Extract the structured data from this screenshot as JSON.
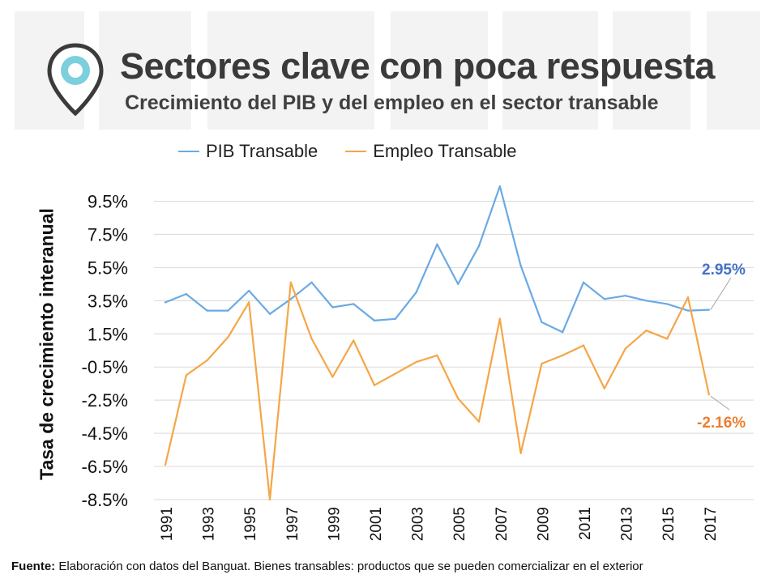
{
  "header": {
    "title": "Sectores clave con poca respuesta",
    "subtitle": "Crecimiento del PIB y del empleo en el sector transable"
  },
  "footer": {
    "source_label": "Fuente:",
    "source_text": "Elaboración con datos del Banguat. Bienes transables: productos que se pueden comercializar en el exterior"
  },
  "colors": {
    "pib": "#6aaae4",
    "empleo": "#f5a646",
    "pib_label": "#4472c4",
    "empleo_label": "#ed7d31",
    "pin": "#7ccfdc"
  },
  "chart_data": {
    "type": "line",
    "title": "",
    "xlabel": "",
    "ylabel": "Tasa de crecimiento interanual",
    "ylim": [
      -8.5,
      10.5
    ],
    "yticks": [
      9.5,
      7.5,
      5.5,
      3.5,
      1.5,
      -0.5,
      -2.5,
      -4.5,
      -6.5,
      -8.5
    ],
    "ytick_labels": [
      "9.5%",
      "7.5%",
      "5.5%",
      "3.5%",
      "1.5%",
      "-0.5%",
      "-2.5%",
      "-4.5%",
      "-6.5%",
      "-8.5%"
    ],
    "x": [
      1991,
      1992,
      1993,
      1994,
      1995,
      1996,
      1997,
      1998,
      1999,
      2000,
      2001,
      2002,
      2003,
      2004,
      2005,
      2006,
      2007,
      2008,
      2009,
      2010,
      2011,
      2012,
      2013,
      2014,
      2015,
      2016,
      2017
    ],
    "xtick_labels": [
      "1991",
      "1993",
      "1995",
      "1997",
      "1999",
      "2001",
      "2003",
      "2005",
      "2007",
      "2009",
      "2011",
      "2013",
      "2015",
      "2017"
    ],
    "legend_position": "top",
    "series": [
      {
        "name": "PIB Transable",
        "values": [
          3.4,
          3.9,
          2.9,
          2.9,
          4.1,
          2.7,
          3.6,
          4.6,
          3.1,
          3.3,
          2.3,
          2.4,
          4.0,
          6.9,
          4.5,
          6.8,
          10.4,
          5.6,
          2.2,
          1.6,
          4.6,
          3.6,
          3.8,
          3.5,
          3.3,
          2.9,
          2.95
        ],
        "end_label": "2.95%"
      },
      {
        "name": "Empleo Transable",
        "values": [
          -6.4,
          -1.0,
          -0.1,
          1.3,
          3.4,
          -8.5,
          4.6,
          1.2,
          -1.1,
          1.1,
          -1.6,
          -0.9,
          -0.2,
          0.2,
          -2.4,
          -3.8,
          2.4,
          -5.7,
          -0.3,
          0.2,
          0.8,
          -1.8,
          0.6,
          1.7,
          1.2,
          3.7,
          -2.16
        ],
        "end_label": "-2.16%"
      }
    ]
  }
}
